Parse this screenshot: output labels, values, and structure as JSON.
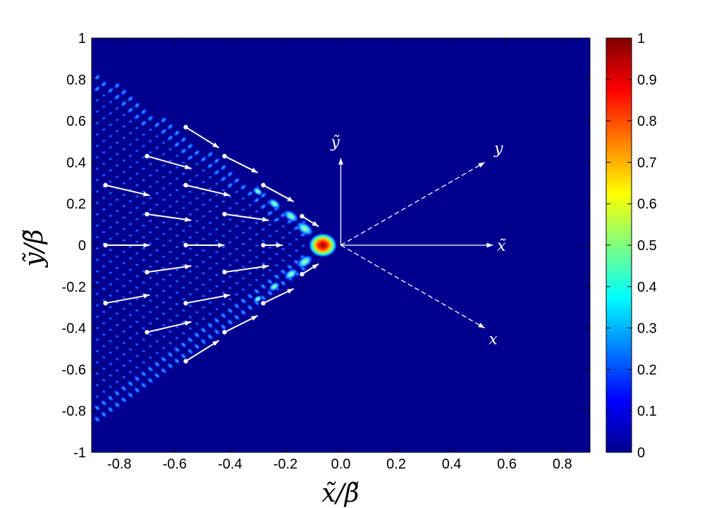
{
  "chart_data": {
    "type": "heatmap",
    "title": "",
    "xlabel": "x̃/β̃",
    "ylabel": "ỹ/β̃",
    "xlim": [
      -0.9,
      0.9
    ],
    "ylim": [
      -1,
      1
    ],
    "x_ticks": [
      "-0.8",
      "-0.6",
      "-0.4",
      "-0.2",
      "0.0",
      "0.2",
      "0.4",
      "0.6",
      "0.8"
    ],
    "y_ticks": [
      "1",
      "0.8",
      "0.6",
      "0.4",
      "0.2",
      "0",
      "-0.2",
      "-0.4",
      "-0.6",
      "-0.8",
      "-1"
    ],
    "colorbar": {
      "colormap": "jet",
      "range": [
        0,
        1
      ],
      "ticks": [
        "1",
        "0.9",
        "0.8",
        "0.7",
        "0.6",
        "0.5",
        "0.4",
        "0.3",
        "0.2",
        "0.1",
        "0"
      ]
    },
    "peak": {
      "x": -0.065,
      "y": 0.0,
      "value": 1.0
    },
    "wedge_lines": [
      {
        "from": [
          -0.02,
          0.0
        ],
        "to": [
          -0.9,
          0.86
        ]
      },
      {
        "from": [
          -0.02,
          0.0
        ],
        "to": [
          -0.9,
          -0.86
        ]
      }
    ],
    "flow_arrows": [
      {
        "x0": -0.56,
        "y0": 0.57,
        "x1": -0.44,
        "y1": 0.47
      },
      {
        "x0": -0.42,
        "y0": 0.43,
        "x1": -0.3,
        "y1": 0.35
      },
      {
        "x0": -0.28,
        "y0": 0.29,
        "x1": -0.17,
        "y1": 0.21
      },
      {
        "x0": -0.14,
        "y0": 0.14,
        "x1": -0.08,
        "y1": 0.09
      },
      {
        "x0": -0.7,
        "y0": 0.43,
        "x1": -0.54,
        "y1": 0.37
      },
      {
        "x0": -0.56,
        "y0": 0.29,
        "x1": -0.4,
        "y1": 0.24
      },
      {
        "x0": -0.42,
        "y0": 0.15,
        "x1": -0.26,
        "y1": 0.12
      },
      {
        "x0": -0.85,
        "y0": 0.29,
        "x1": -0.69,
        "y1": 0.24
      },
      {
        "x0": -0.7,
        "y0": 0.15,
        "x1": -0.54,
        "y1": 0.12
      },
      {
        "x0": -0.85,
        "y0": 0.0,
        "x1": -0.69,
        "y1": 0.0
      },
      {
        "x0": -0.56,
        "y0": 0.0,
        "x1": -0.42,
        "y1": 0.0
      },
      {
        "x0": -0.28,
        "y0": 0.0,
        "x1": -0.21,
        "y1": 0.0
      },
      {
        "x0": -0.7,
        "y0": -0.13,
        "x1": -0.54,
        "y1": -0.1
      },
      {
        "x0": -0.42,
        "y0": -0.13,
        "x1": -0.26,
        "y1": -0.1
      },
      {
        "x0": -0.85,
        "y0": -0.28,
        "x1": -0.69,
        "y1": -0.24
      },
      {
        "x0": -0.56,
        "y0": -0.28,
        "x1": -0.4,
        "y1": -0.24
      },
      {
        "x0": -0.7,
        "y0": -0.42,
        "x1": -0.54,
        "y1": -0.37
      },
      {
        "x0": -0.42,
        "y0": -0.42,
        "x1": -0.3,
        "y1": -0.34
      },
      {
        "x0": -0.56,
        "y0": -0.56,
        "x1": -0.44,
        "y1": -0.46
      },
      {
        "x0": -0.28,
        "y0": -0.28,
        "x1": -0.17,
        "y1": -0.21
      },
      {
        "x0": -0.14,
        "y0": -0.14,
        "x1": -0.08,
        "y1": -0.09
      }
    ],
    "frame_axes": [
      {
        "label": "ỹ",
        "style": "solid",
        "from": [
          0.0,
          0.0
        ],
        "to": [
          0.0,
          0.42
        ],
        "label_at": [
          -0.02,
          0.5
        ]
      },
      {
        "label": "x̃",
        "style": "solid",
        "from": [
          0.0,
          0.0
        ],
        "to": [
          0.55,
          0.0
        ],
        "label_at": [
          0.58,
          0.0
        ]
      },
      {
        "label": "y",
        "style": "dashed",
        "from": [
          0.0,
          0.0
        ],
        "to": [
          0.52,
          0.4
        ],
        "label_at": [
          0.57,
          0.47
        ]
      },
      {
        "label": "x",
        "style": "dashed",
        "from": [
          0.0,
          0.0
        ],
        "to": [
          0.52,
          -0.4
        ],
        "label_at": [
          0.55,
          -0.45
        ]
      }
    ]
  },
  "colors": {
    "background": "#00008f",
    "arrow": "#ffffff"
  }
}
